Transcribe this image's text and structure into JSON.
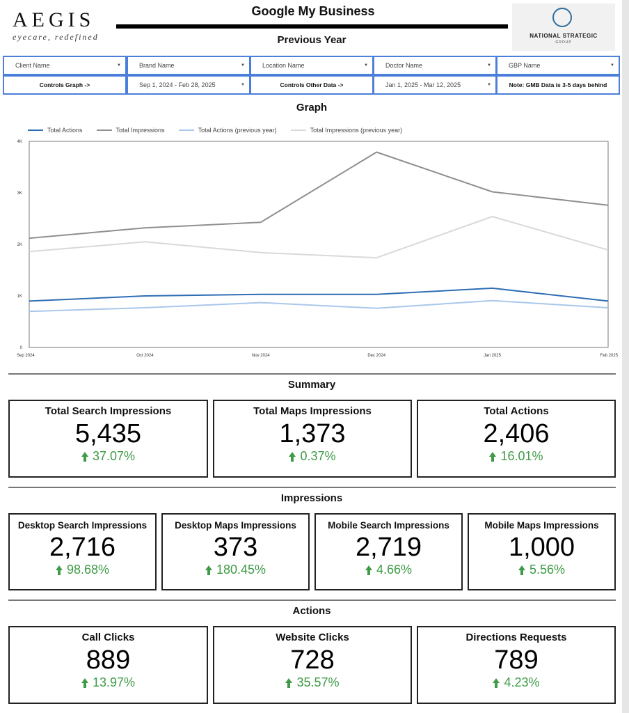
{
  "header": {
    "logo_main": "AEGIS",
    "logo_sub": "eyecare, redefined",
    "title": "Google My Business",
    "subtitle": "Previous Year",
    "partner_logo": {
      "name": "NATIONAL STRATEGIC",
      "sub": "GROUP"
    }
  },
  "filters": {
    "row1": [
      {
        "label": "Client Name"
      },
      {
        "label": "Brand Name"
      },
      {
        "label": "Location Name"
      },
      {
        "label": "Doctor Name"
      },
      {
        "label": "GBP Name"
      }
    ],
    "controls_graph_label": "Controls Graph ->",
    "graph_date_range": "Sep 1, 2024 - Feb 28, 2025",
    "controls_other_label": "Controls Other Data ->",
    "other_date_range": "Jan 1, 2025 - Mar 12, 2025",
    "note": "Note: GMB Data is 3-5 days behind"
  },
  "graph": {
    "title": "Graph"
  },
  "chart_data": {
    "type": "line",
    "x": [
      "Sep 2024",
      "Oct 2024",
      "Nov 2024",
      "Dec 2024",
      "Jan 2025",
      "Feb 2025"
    ],
    "y_ticks": [
      "0",
      "1K",
      "2K",
      "3K",
      "4K"
    ],
    "ylim": [
      0,
      4000
    ],
    "legend_position": "top-left",
    "series": [
      {
        "name": "Total Actions",
        "color": "#2e6db4",
        "values": [
          900,
          1000,
          1030,
          1030,
          1150,
          900
        ]
      },
      {
        "name": "Total Impressions",
        "color": "#8f8f8f",
        "values": [
          2120,
          2320,
          2430,
          3790,
          3020,
          2760
        ]
      },
      {
        "name": "Total Actions (previous year)",
        "color": "#a9c7ea",
        "values": [
          700,
          770,
          870,
          760,
          910,
          770
        ]
      },
      {
        "name": "Total Impressions (previous year)",
        "color": "#d9d9d9",
        "values": [
          1860,
          2050,
          1840,
          1740,
          2540,
          1890
        ]
      }
    ]
  },
  "summary": {
    "title": "Summary",
    "cards": [
      {
        "title": "Total Search Impressions",
        "value": "5,435",
        "change": "37.07%"
      },
      {
        "title": "Total Maps Impressions",
        "value": "1,373",
        "change": "0.37%"
      },
      {
        "title": "Total Actions",
        "value": "2,406",
        "change": "16.01%"
      }
    ]
  },
  "impressions": {
    "title": "Impressions",
    "cards": [
      {
        "title": "Desktop Search Impressions",
        "value": "2,716",
        "change": "98.68%"
      },
      {
        "title": "Desktop Maps Impressions",
        "value": "373",
        "change": "180.45%"
      },
      {
        "title": "Mobile Search Impressions",
        "value": "2,719",
        "change": "4.66%"
      },
      {
        "title": "Mobile Maps Impressions",
        "value": "1,000",
        "change": "5.56%"
      }
    ]
  },
  "actions": {
    "title": "Actions",
    "cards": [
      {
        "title": "Call Clicks",
        "value": "889",
        "change": "13.97%"
      },
      {
        "title": "Website Clicks",
        "value": "728",
        "change": "35.57%"
      },
      {
        "title": "Directions Requests",
        "value": "789",
        "change": "4.23%"
      }
    ]
  },
  "colors": {
    "accent_border": "#4c7fd9",
    "positive": "#3e9b46"
  }
}
